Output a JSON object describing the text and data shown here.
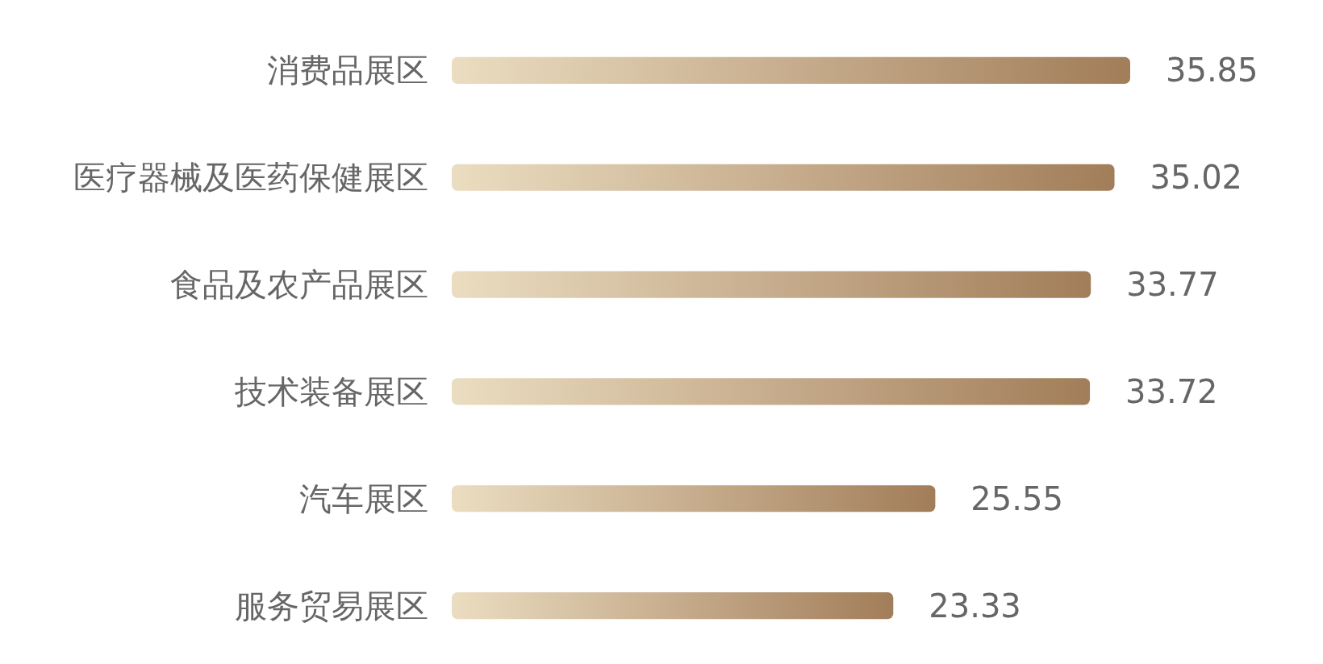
{
  "chart_data": {
    "type": "bar",
    "orientation": "horizontal",
    "categories": [
      "消费品展区",
      "医疗器械及医药保健展区",
      "食品及农产品展区",
      "技术装备展区",
      "汽车展区",
      "服务贸易展区"
    ],
    "values": [
      35.85,
      35.02,
      33.77,
      33.72,
      25.55,
      23.33
    ],
    "color": "#a27d59",
    "data_labels": true
  }
}
